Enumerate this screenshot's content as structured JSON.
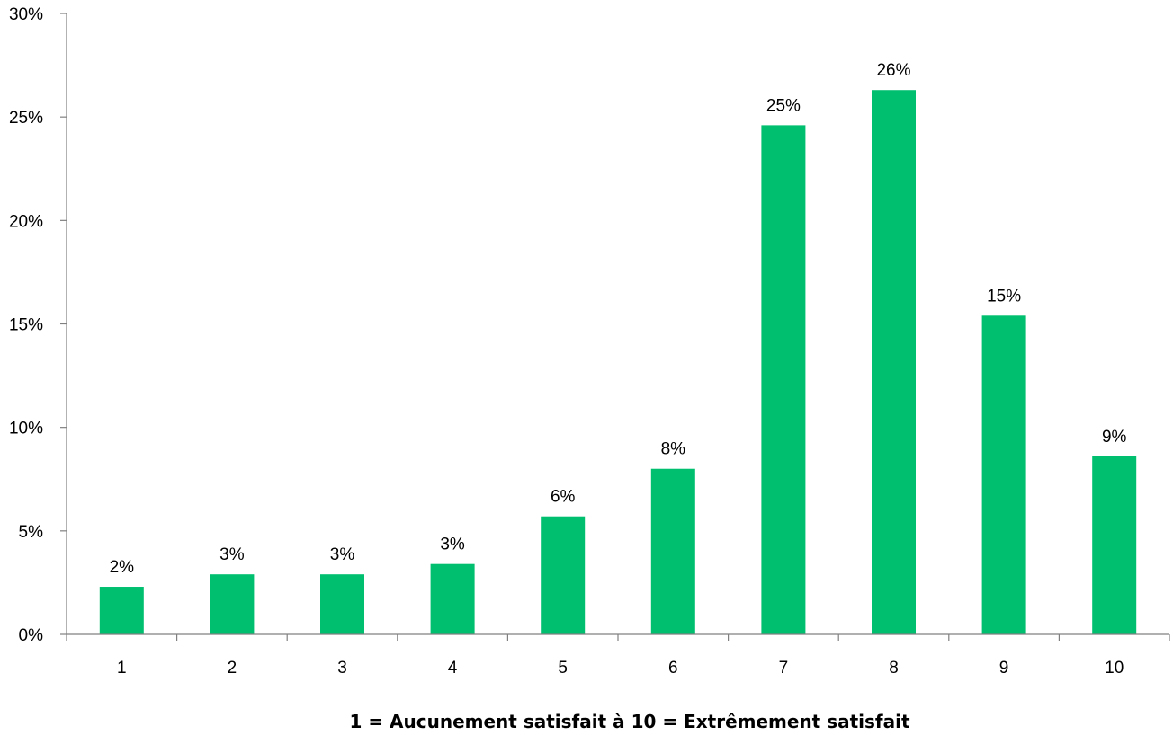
{
  "chart_data": {
    "type": "bar",
    "categories": [
      "1",
      "2",
      "3",
      "4",
      "5",
      "6",
      "7",
      "8",
      "9",
      "10"
    ],
    "values": [
      2.3,
      2.9,
      2.9,
      3.4,
      5.7,
      8.0,
      24.6,
      26.3,
      15.4,
      8.6
    ],
    "data_labels": [
      "2%",
      "3%",
      "3%",
      "3%",
      "6%",
      "8%",
      "25%",
      "26%",
      "15%",
      "9%"
    ],
    "title": "",
    "xlabel": "1 = Aucunement satisfait à 10 = Extrêmement satisfait",
    "ylabel": "",
    "ylim": [
      0,
      30
    ],
    "yticks": [
      0,
      5,
      10,
      15,
      20,
      25,
      30
    ],
    "ytick_labels": [
      "0%",
      "5%",
      "10%",
      "15%",
      "20%",
      "25%",
      "30%"
    ],
    "bar_color": "#00BF6F",
    "axis_color": "#808080",
    "grid": false,
    "legend": "none"
  }
}
